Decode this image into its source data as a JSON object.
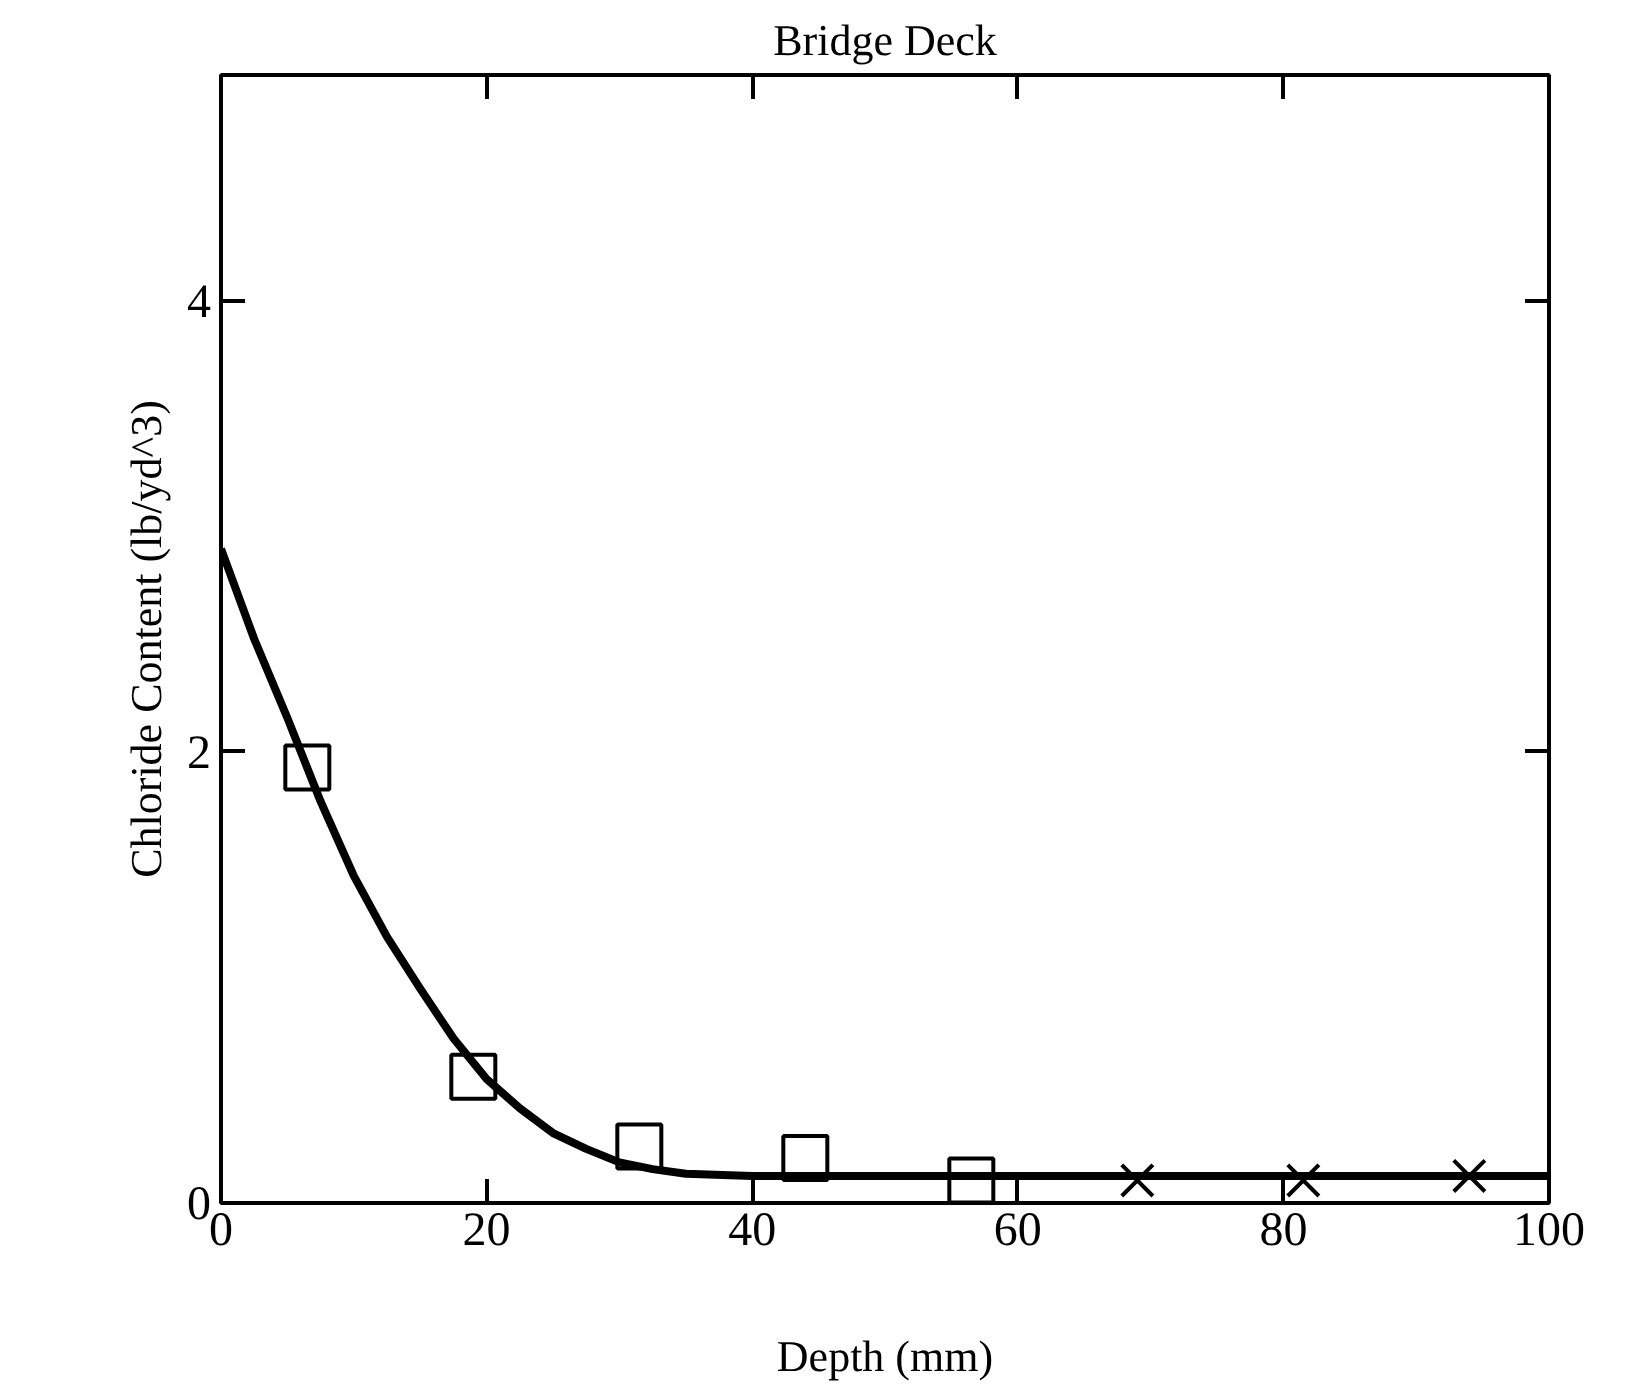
{
  "chart_data": {
    "type": "line",
    "title": "Bridge Deck",
    "xlabel": "Depth (mm)",
    "ylabel": "Chloride Content (lb/yd^3)",
    "xlim": [
      0,
      100
    ],
    "xticks": [
      0,
      20,
      40,
      60,
      80,
      100
    ],
    "ylim": [
      0,
      5
    ],
    "yticks": [
      0,
      2,
      4
    ],
    "grid": false,
    "series": [
      {
        "color": "#000000",
        "line_style": "solid",
        "marker": "none",
        "x": [
          0,
          2.5,
          5,
          7.5,
          10,
          12.5,
          15,
          17.5,
          20,
          22.5,
          25,
          27.5,
          30,
          32.5,
          35,
          40,
          50,
          60,
          80,
          100
        ],
        "values": [
          2.9,
          2.5,
          2.15,
          1.78,
          1.45,
          1.18,
          0.95,
          0.73,
          0.55,
          0.42,
          0.31,
          0.24,
          0.18,
          0.15,
          0.13,
          0.12,
          0.12,
          0.12,
          0.12,
          0.12
        ]
      },
      {
        "type": "scatter",
        "color": "#000000",
        "marker": "square",
        "x": [
          6.5,
          19,
          31.5,
          44,
          56.5
        ],
        "values": [
          1.93,
          0.56,
          0.25,
          0.2,
          0.1
        ]
      },
      {
        "type": "scatter",
        "color": "#000000",
        "marker": "cross",
        "x": [
          69,
          81.5,
          94
        ],
        "values": [
          0.1,
          0.1,
          0.12
        ]
      }
    ]
  }
}
